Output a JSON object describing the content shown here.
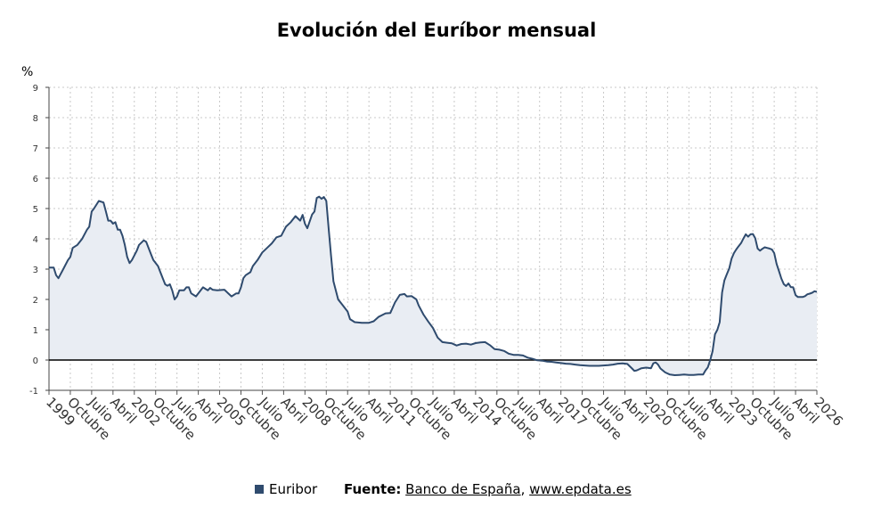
{
  "chart_data": {
    "type": "area",
    "title": "Evolución del Euríbor mensual",
    "ylabel": "%",
    "xlabel": "",
    "ylim": [
      -1,
      9
    ],
    "y_ticks": [
      "9",
      "8",
      "7",
      "6",
      "5",
      "4",
      "3",
      "2",
      "1",
      "0",
      "-1"
    ],
    "x_tick_labels": [
      "1999",
      "Octubre",
      "Julio",
      "Abril",
      "2002",
      "Octubre",
      "Julio",
      "Abril",
      "2005",
      "Octubre",
      "Julio",
      "Abril",
      "2008",
      "Octubre",
      "Julio",
      "Abril",
      "2011",
      "Octubre",
      "Julio",
      "Abril",
      "2014",
      "Octubre",
      "Julio",
      "Abril",
      "2017",
      "Octubre",
      "Julio",
      "Abril",
      "2020",
      "Octubre",
      "Julio",
      "Abril",
      "2023",
      "Octubre",
      "Julio",
      "Abril",
      "2026"
    ],
    "x_range": [
      "1999-01",
      "2026-01"
    ],
    "grid": true,
    "legend_position": "bottom",
    "series": [
      {
        "name": "Euribor",
        "color": "#2f4b6e",
        "points": [
          [
            "1999-01",
            3.05
          ],
          [
            "1999-03",
            3.05
          ],
          [
            "1999-04",
            2.8
          ],
          [
            "1999-05",
            2.7
          ],
          [
            "1999-07",
            3.0
          ],
          [
            "1999-09",
            3.3
          ],
          [
            "1999-10",
            3.4
          ],
          [
            "1999-11",
            3.7
          ],
          [
            "2000-01",
            3.8
          ],
          [
            "2000-03",
            4.0
          ],
          [
            "2000-05",
            4.3
          ],
          [
            "2000-06",
            4.4
          ],
          [
            "2000-07",
            4.9
          ],
          [
            "2000-08",
            5.0
          ],
          [
            "2000-10",
            5.25
          ],
          [
            "2000-12",
            5.2
          ],
          [
            "2001-01",
            4.9
          ],
          [
            "2001-02",
            4.6
          ],
          [
            "2001-03",
            4.6
          ],
          [
            "2001-04",
            4.5
          ],
          [
            "2001-05",
            4.55
          ],
          [
            "2001-06",
            4.3
          ],
          [
            "2001-07",
            4.3
          ],
          [
            "2001-08",
            4.1
          ],
          [
            "2001-09",
            3.8
          ],
          [
            "2001-10",
            3.4
          ],
          [
            "2001-11",
            3.2
          ],
          [
            "2001-12",
            3.3
          ],
          [
            "2002-02",
            3.6
          ],
          [
            "2002-03",
            3.8
          ],
          [
            "2002-05",
            3.95
          ],
          [
            "2002-06",
            3.9
          ],
          [
            "2002-08",
            3.5
          ],
          [
            "2002-09",
            3.3
          ],
          [
            "2002-11",
            3.1
          ],
          [
            "2002-12",
            2.9
          ],
          [
            "2003-01",
            2.7
          ],
          [
            "2003-02",
            2.5
          ],
          [
            "2003-03",
            2.45
          ],
          [
            "2003-04",
            2.5
          ],
          [
            "2003-05",
            2.3
          ],
          [
            "2003-06",
            2.0
          ],
          [
            "2003-07",
            2.1
          ],
          [
            "2003-08",
            2.3
          ],
          [
            "2003-09",
            2.3
          ],
          [
            "2003-10",
            2.3
          ],
          [
            "2003-11",
            2.4
          ],
          [
            "2003-12",
            2.4
          ],
          [
            "2004-01",
            2.2
          ],
          [
            "2004-03",
            2.1
          ],
          [
            "2004-05",
            2.3
          ],
          [
            "2004-06",
            2.4
          ],
          [
            "2004-07",
            2.35
          ],
          [
            "2004-08",
            2.3
          ],
          [
            "2004-09",
            2.38
          ],
          [
            "2004-10",
            2.32
          ],
          [
            "2004-12",
            2.3
          ],
          [
            "2005-03",
            2.32
          ],
          [
            "2005-06",
            2.1
          ],
          [
            "2005-08",
            2.2
          ],
          [
            "2005-09",
            2.2
          ],
          [
            "2005-10",
            2.4
          ],
          [
            "2005-11",
            2.7
          ],
          [
            "2005-12",
            2.8
          ],
          [
            "2006-02",
            2.9
          ],
          [
            "2006-03",
            3.1
          ],
          [
            "2006-05",
            3.3
          ],
          [
            "2006-07",
            3.55
          ],
          [
            "2006-09",
            3.7
          ],
          [
            "2006-11",
            3.85
          ],
          [
            "2007-01",
            4.05
          ],
          [
            "2007-03",
            4.1
          ],
          [
            "2007-05",
            4.4
          ],
          [
            "2007-07",
            4.55
          ],
          [
            "2007-09",
            4.75
          ],
          [
            "2007-11",
            4.6
          ],
          [
            "2007-12",
            4.79
          ],
          [
            "2008-01",
            4.5
          ],
          [
            "2008-02",
            4.35
          ],
          [
            "2008-04",
            4.8
          ],
          [
            "2008-05",
            4.9
          ],
          [
            "2008-06",
            5.35
          ],
          [
            "2008-07",
            5.39
          ],
          [
            "2008-08",
            5.32
          ],
          [
            "2008-09",
            5.38
          ],
          [
            "2008-10",
            5.25
          ],
          [
            "2008-11",
            4.35
          ],
          [
            "2008-12",
            3.45
          ],
          [
            "2009-01",
            2.6
          ],
          [
            "2009-03",
            2.0
          ],
          [
            "2009-05",
            1.8
          ],
          [
            "2009-07",
            1.6
          ],
          [
            "2009-08",
            1.35
          ],
          [
            "2009-10",
            1.25
          ],
          [
            "2010-01",
            1.23
          ],
          [
            "2010-04",
            1.23
          ],
          [
            "2010-06",
            1.28
          ],
          [
            "2010-08",
            1.42
          ],
          [
            "2010-10",
            1.5
          ],
          [
            "2010-11",
            1.54
          ],
          [
            "2011-01",
            1.55
          ],
          [
            "2011-03",
            1.9
          ],
          [
            "2011-05",
            2.15
          ],
          [
            "2011-07",
            2.18
          ],
          [
            "2011-08",
            2.1
          ],
          [
            "2011-10",
            2.11
          ],
          [
            "2011-12",
            2.0
          ],
          [
            "2012-01",
            1.8
          ],
          [
            "2012-03",
            1.5
          ],
          [
            "2012-05",
            1.27
          ],
          [
            "2012-07",
            1.06
          ],
          [
            "2012-09",
            0.74
          ],
          [
            "2012-11",
            0.59
          ],
          [
            "2013-01",
            0.57
          ],
          [
            "2013-03",
            0.55
          ],
          [
            "2013-05",
            0.48
          ],
          [
            "2013-07",
            0.53
          ],
          [
            "2013-09",
            0.54
          ],
          [
            "2013-11",
            0.51
          ],
          [
            "2014-01",
            0.56
          ],
          [
            "2014-03",
            0.58
          ],
          [
            "2014-05",
            0.59
          ],
          [
            "2014-07",
            0.49
          ],
          [
            "2014-09",
            0.36
          ],
          [
            "2014-11",
            0.34
          ],
          [
            "2015-01",
            0.3
          ],
          [
            "2015-03",
            0.21
          ],
          [
            "2015-05",
            0.17
          ],
          [
            "2015-07",
            0.17
          ],
          [
            "2015-09",
            0.15
          ],
          [
            "2015-11",
            0.08
          ],
          [
            "2016-01",
            0.04
          ],
          [
            "2016-03",
            -0.01
          ],
          [
            "2016-05",
            -0.02
          ],
          [
            "2016-07",
            -0.05
          ],
          [
            "2016-09",
            -0.06
          ],
          [
            "2016-11",
            -0.08
          ],
          [
            "2017-01",
            -0.1
          ],
          [
            "2017-03",
            -0.12
          ],
          [
            "2017-05",
            -0.13
          ],
          [
            "2017-07",
            -0.15
          ],
          [
            "2017-09",
            -0.17
          ],
          [
            "2017-11",
            -0.18
          ],
          [
            "2018-01",
            -0.19
          ],
          [
            "2018-03",
            -0.19
          ],
          [
            "2018-05",
            -0.19
          ],
          [
            "2018-07",
            -0.18
          ],
          [
            "2018-09",
            -0.17
          ],
          [
            "2018-11",
            -0.15
          ],
          [
            "2019-01",
            -0.12
          ],
          [
            "2019-03",
            -0.11
          ],
          [
            "2019-05",
            -0.13
          ],
          [
            "2019-07",
            -0.28
          ],
          [
            "2019-08",
            -0.36
          ],
          [
            "2019-09",
            -0.34
          ],
          [
            "2019-11",
            -0.27
          ],
          [
            "2020-01",
            -0.25
          ],
          [
            "2020-03",
            -0.27
          ],
          [
            "2020-04",
            -0.11
          ],
          [
            "2020-05",
            -0.08
          ],
          [
            "2020-06",
            -0.15
          ],
          [
            "2020-07",
            -0.28
          ],
          [
            "2020-09",
            -0.41
          ],
          [
            "2020-11",
            -0.48
          ],
          [
            "2021-01",
            -0.5
          ],
          [
            "2021-03",
            -0.49
          ],
          [
            "2021-05",
            -0.48
          ],
          [
            "2021-07",
            -0.49
          ],
          [
            "2021-09",
            -0.49
          ],
          [
            "2021-11",
            -0.48
          ],
          [
            "2022-01",
            -0.48
          ],
          [
            "2022-02",
            -0.34
          ],
          [
            "2022-03",
            -0.24
          ],
          [
            "2022-04",
            0.0
          ],
          [
            "2022-05",
            0.29
          ],
          [
            "2022-06",
            0.85
          ],
          [
            "2022-07",
            1.0
          ],
          [
            "2022-08",
            1.25
          ],
          [
            "2022-09",
            2.23
          ],
          [
            "2022-10",
            2.63
          ],
          [
            "2022-11",
            2.83
          ],
          [
            "2022-12",
            3.02
          ],
          [
            "2023-01",
            3.34
          ],
          [
            "2023-02",
            3.53
          ],
          [
            "2023-03",
            3.65
          ],
          [
            "2023-04",
            3.76
          ],
          [
            "2023-05",
            3.86
          ],
          [
            "2023-06",
            4.01
          ],
          [
            "2023-07",
            4.15
          ],
          [
            "2023-08",
            4.07
          ],
          [
            "2023-09",
            4.15
          ],
          [
            "2023-10",
            4.16
          ],
          [
            "2023-11",
            4.02
          ],
          [
            "2023-12",
            3.68
          ],
          [
            "2024-01",
            3.61
          ],
          [
            "2024-02",
            3.67
          ],
          [
            "2024-03",
            3.72
          ],
          [
            "2024-04",
            3.7
          ],
          [
            "2024-05",
            3.68
          ],
          [
            "2024-06",
            3.65
          ],
          [
            "2024-07",
            3.53
          ],
          [
            "2024-08",
            3.17
          ],
          [
            "2024-09",
            2.94
          ],
          [
            "2024-10",
            2.69
          ],
          [
            "2024-11",
            2.51
          ],
          [
            "2024-12",
            2.44
          ],
          [
            "2025-01",
            2.53
          ],
          [
            "2025-02",
            2.41
          ],
          [
            "2025-03",
            2.4
          ],
          [
            "2025-04",
            2.14
          ],
          [
            "2025-05",
            2.08
          ],
          [
            "2025-06",
            2.08
          ],
          [
            "2025-07",
            2.08
          ],
          [
            "2025-08",
            2.11
          ],
          [
            "2025-09",
            2.17
          ],
          [
            "2025-10",
            2.19
          ],
          [
            "2025-11",
            2.22
          ],
          [
            "2025-12",
            2.27
          ],
          [
            "2026-01",
            2.25
          ]
        ]
      }
    ]
  },
  "legend": {
    "label": "Euribor"
  },
  "source": {
    "prefix": "Fuente:",
    "name": "Banco de España",
    "sep": ",",
    "url": "www.epdata.es"
  },
  "colors": {
    "line": "#2f4b6e",
    "area": "#e9edf3",
    "zero_line": "#000000",
    "grid": "#c8c8c8"
  }
}
